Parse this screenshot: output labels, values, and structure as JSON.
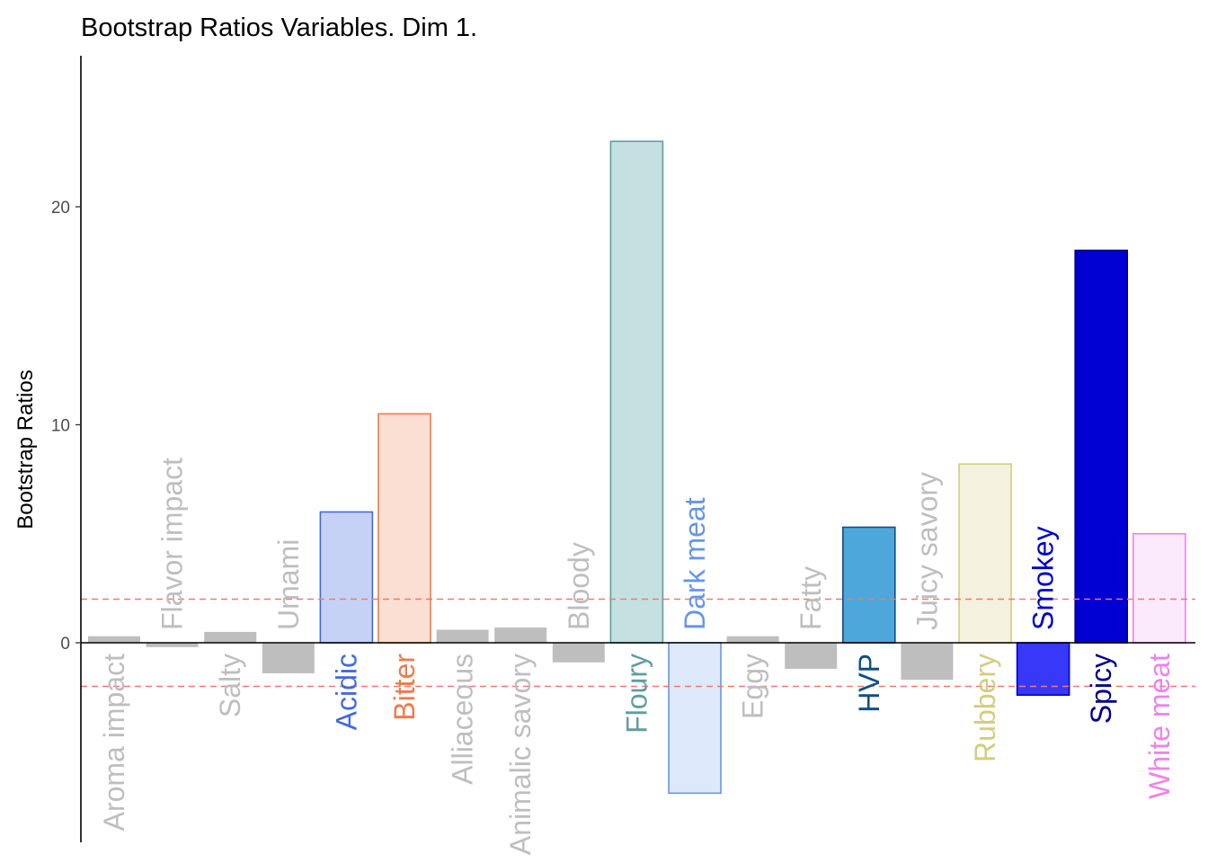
{
  "chart_data": {
    "type": "bar",
    "title": "Bootstrap Ratios Variables. Dim 1.",
    "xlabel": "",
    "ylabel": "Bootstrap Ratios",
    "ylim": [
      -9,
      27
    ],
    "yticks": [
      0,
      10,
      20
    ],
    "threshold": [
      2,
      -2
    ],
    "grid": false,
    "legend": "none",
    "categories": [
      "Aroma impact",
      "Flavor impact",
      "Salty",
      "Umami",
      "Acidic",
      "Bitter",
      "Alliaceous",
      "Animalic savory",
      "Bloody",
      "Floury",
      "Dark meat",
      "Eggy",
      "Fatty",
      "HVP",
      "Juicy savory",
      "Rubbery",
      "Smokey",
      "Spicy",
      "White meat"
    ],
    "values": [
      0.3,
      -0.2,
      0.5,
      -1.4,
      6.0,
      10.5,
      0.6,
      0.7,
      -0.9,
      23.0,
      -6.9,
      0.3,
      -1.2,
      5.3,
      -1.7,
      8.2,
      -2.4,
      18.0,
      5.0
    ],
    "significant": [
      false,
      false,
      false,
      false,
      true,
      true,
      false,
      false,
      false,
      true,
      true,
      false,
      false,
      true,
      false,
      true,
      true,
      true,
      true
    ],
    "fills": [
      "#bebebe",
      "#bebebe",
      "#bebebe",
      "#bebebe",
      "#c5d2f6",
      "#fadfd2",
      "#bebebe",
      "#bebebe",
      "#bebebe",
      "#c5e0e1",
      "#dde9fb",
      "#bebebe",
      "#bebebe",
      "#4ea7da",
      "#bebebe",
      "#f4f1de",
      "#3838f8",
      "#0000d2",
      "#fbeafb"
    ],
    "strokes": [
      "#bebebe",
      "#bebebe",
      "#bebebe",
      "#bebebe",
      "#4169e1",
      "#ee7b4a",
      "#bebebe",
      "#bebebe",
      "#bebebe",
      "#5f9ea0",
      "#6495ed",
      "#bebebe",
      "#bebebe",
      "#104e8b",
      "#bebebe",
      "#d4cc7e",
      "#0000cd",
      "#00008b",
      "#ee82ee"
    ],
    "label_colors": [
      "#bebebe",
      "#bebebe",
      "#bebebe",
      "#bebebe",
      "#4169e1",
      "#ee7b4a",
      "#bebebe",
      "#bebebe",
      "#bebebe",
      "#5f9ea0",
      "#6495ed",
      "#bebebe",
      "#bebebe",
      "#104e8b",
      "#bebebe",
      "#d4cc7e",
      "#0000cd",
      "#00008b",
      "#ee82ee"
    ],
    "threshold_color": "#f8766d"
  }
}
